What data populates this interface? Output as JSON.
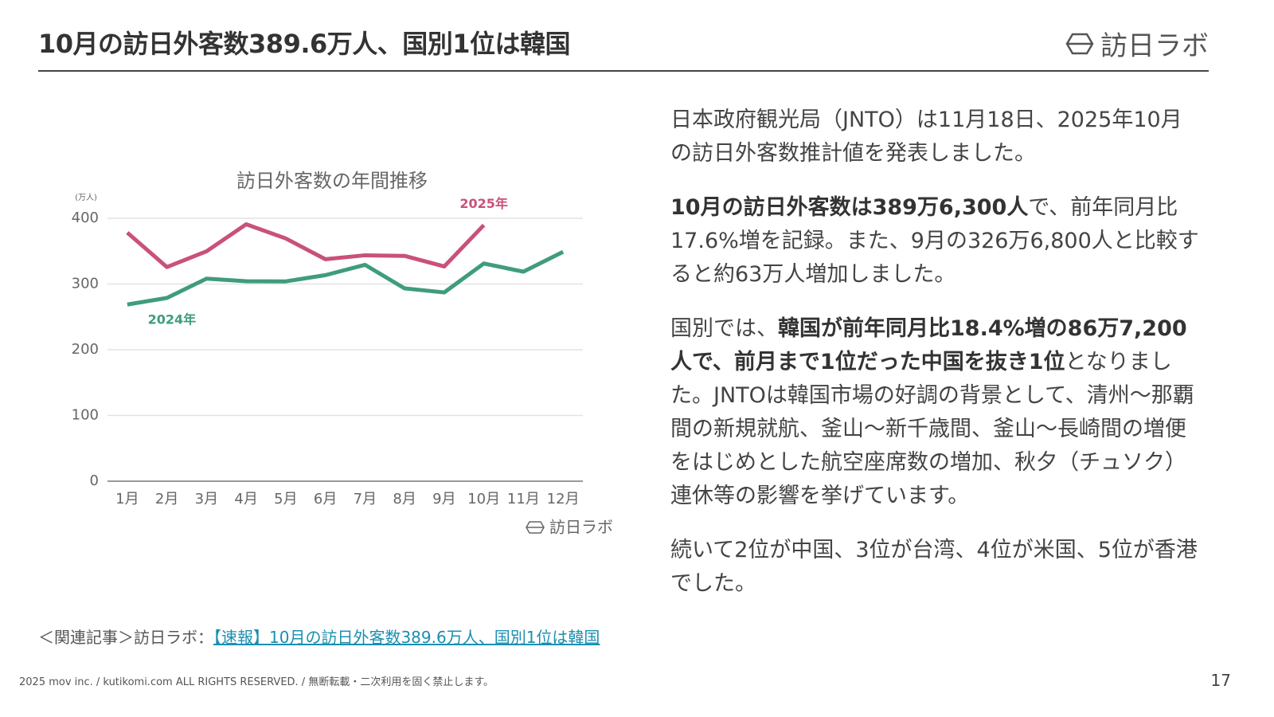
{
  "header": {
    "title": "10月の訪日外客数389.6万人、国別1位は韓国",
    "logo": "訪日ラボ"
  },
  "chart_data": {
    "type": "line",
    "title": "訪日外客数の年間推移",
    "y_label": "(万人)",
    "categories": [
      "1月",
      "2月",
      "3月",
      "4月",
      "5月",
      "6月",
      "7月",
      "8月",
      "9月",
      "10月",
      "11月",
      "12月"
    ],
    "series": [
      {
        "name": "2025年",
        "color": "#c9517a",
        "values": [
          378.2,
          325.8,
          349.8,
          390.9,
          369.3,
          337.7,
          343.7,
          342.8,
          326.7,
          389.6,
          null,
          null
        ]
      },
      {
        "name": "2024年",
        "color": "#3f9c7d",
        "values": [
          268.8,
          278.8,
          308.2,
          304.3,
          304.0,
          313.5,
          329.2,
          293.3,
          287.2,
          331.2,
          318.8,
          348.9
        ]
      }
    ],
    "ylim": [
      0,
      400
    ],
    "yticks": [
      0,
      100,
      200,
      300,
      400
    ],
    "grid": true,
    "source_logo": "訪日ラボ"
  },
  "body": {
    "paragraphs": [
      [
        {
          "text": "日本政府観光局（JNTO）は11月18日、2025年10月の訪日外客数推計値を発表しました。",
          "bold": false
        }
      ],
      [
        {
          "text": "10月の訪日外客数は389万6,300人",
          "bold": true
        },
        {
          "text": "で、前年同月比17.6%増を記録。また、9月の326万6,800人と比較すると約63万人増加しました。",
          "bold": false
        }
      ],
      [
        {
          "text": "国別では、",
          "bold": false
        },
        {
          "text": "韓国が前年同月比18.4%増の86万7,200人で、前月まで1位だった中国を抜き1位",
          "bold": true
        },
        {
          "text": "となりました。JNTOは韓国市場の好調の背景として、清州～那覇間の新規就航、釜山～新千歳間、釜山～長崎間の増便をはじめとした航空座席数の増加、秋夕（チュソク）連休等の影響を挙げています。",
          "bold": false
        }
      ],
      [
        {
          "text": "続いて2位が中国、3位が台湾、4位が米国、5位が香港でした。",
          "bold": false
        }
      ]
    ]
  },
  "related": {
    "prefix": "＜関連記事＞訪日ラボ：",
    "link": "【速報】10月の訪日外客数389.6万人、国別1位は韓国"
  },
  "footer": {
    "copyright": "2025 mov inc. / kutikomi.com ALL RIGHTS RESERVED. / 無断転載・二次利用を固く禁止します。",
    "page": "17"
  }
}
